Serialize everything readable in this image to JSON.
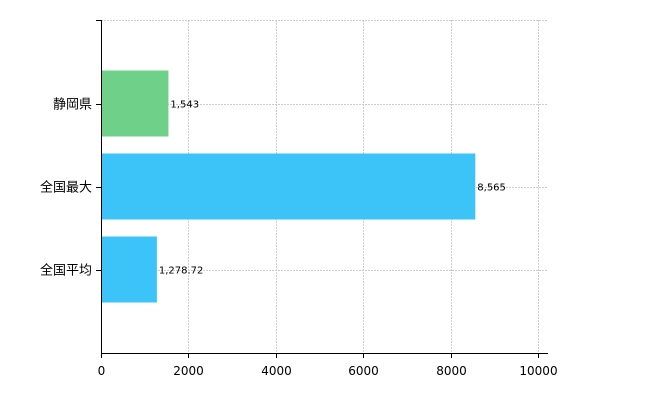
{
  "chart_data": {
    "type": "bar",
    "orientation": "horizontal",
    "categories": [
      "静岡県",
      "全国最大",
      "全国平均"
    ],
    "values": [
      1543,
      8565,
      1278.72
    ],
    "data_labels": [
      "1,543",
      "8,565",
      "1,278.72"
    ],
    "bar_colors": [
      "#6fd08a",
      "#3cc3f7",
      "#3cc3f7"
    ],
    "xlim": [
      0,
      10000
    ],
    "x_ticks": [
      0,
      2000,
      4000,
      6000,
      8000,
      10000
    ],
    "x_tick_labels": [
      "0",
      "2000",
      "4000",
      "6000",
      "8000",
      "10000"
    ],
    "grid": true,
    "title": "",
    "xlabel": "",
    "ylabel": ""
  }
}
